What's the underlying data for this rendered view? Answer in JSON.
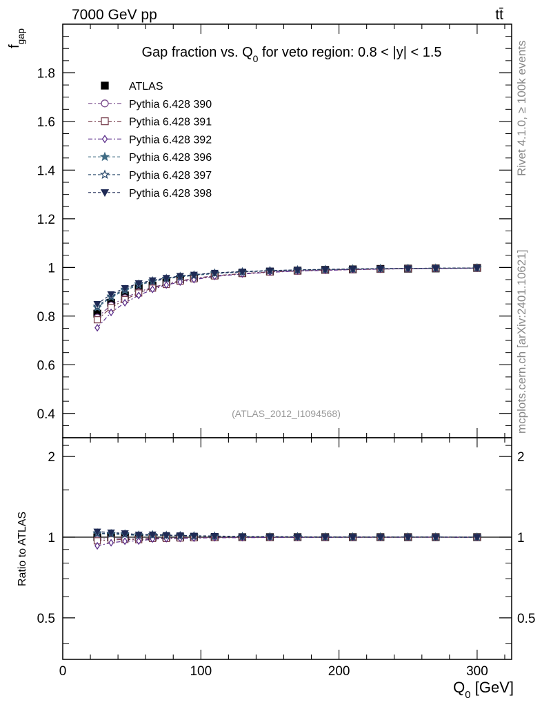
{
  "header": {
    "energy_label": "7000 GeV pp",
    "process_label": "tt̄",
    "side_rivet": "Rivet 4.1.0, ≥ 100k events",
    "side_mcplots": "mcplots.cern.ch [arXiv:2401.10621]",
    "analysis_id": "(ATLAS_2012_I1094568)"
  },
  "chart_data": [
    {
      "type": "scatter",
      "panel": "main",
      "title": "Gap fraction vs. Q0 for veto region: 0.8 < |y| < 1.5",
      "title_main": "Gap fraction vs. Q",
      "title_sub": "0",
      "title_rest": " for veto region: 0.8 < |y| < 1.5",
      "ylabel": "f",
      "ylabel_sub": "gap",
      "xlim": [
        0,
        325
      ],
      "ylim": [
        0.3,
        2.0
      ],
      "yticks": [
        0.4,
        0.6,
        0.8,
        1,
        1.2,
        1.4,
        1.6,
        1.8
      ],
      "ytick_labels": [
        "0.4",
        "0.6",
        "0.8",
        "1",
        "1.2",
        "1.4",
        "1.6",
        "1.8"
      ],
      "x": [
        25,
        35,
        45,
        55,
        65,
        75,
        85,
        95,
        110,
        130,
        150,
        170,
        190,
        210,
        230,
        250,
        270,
        300
      ],
      "series": [
        {
          "name": "ATLAS",
          "marker": "square-filled",
          "color": "#000000",
          "dash": "",
          "values": [
            0.81,
            0.855,
            0.885,
            0.915,
            0.925,
            0.94,
            0.95,
            0.958,
            0.968,
            0.977,
            0.983,
            0.987,
            0.99,
            0.992,
            0.994,
            0.995,
            0.996,
            0.998
          ]
        },
        {
          "name": "Pythia 6.428 390",
          "marker": "circle-open",
          "color": "#7a4a8c",
          "dash": "6,3,2,3",
          "values": [
            0.795,
            0.845,
            0.875,
            0.9,
            0.918,
            0.933,
            0.945,
            0.955,
            0.966,
            0.975,
            0.982,
            0.986,
            0.989,
            0.992,
            0.994,
            0.995,
            0.996,
            0.997
          ]
        },
        {
          "name": "Pythia 6.428 391",
          "marker": "square-open",
          "color": "#7a4250",
          "dash": "6,3,2,3",
          "values": [
            0.785,
            0.835,
            0.868,
            0.895,
            0.915,
            0.93,
            0.943,
            0.953,
            0.965,
            0.975,
            0.981,
            0.985,
            0.989,
            0.991,
            0.993,
            0.995,
            0.996,
            0.997
          ]
        },
        {
          "name": "Pythia 6.428 392",
          "marker": "diamond-open",
          "color": "#5b2d8a",
          "dash": "6,3,2,3",
          "values": [
            0.752,
            0.815,
            0.855,
            0.885,
            0.91,
            0.928,
            0.94,
            0.95,
            0.963,
            0.973,
            0.98,
            0.985,
            0.988,
            0.991,
            0.993,
            0.995,
            0.996,
            0.997
          ]
        },
        {
          "name": "Pythia 6.428 396",
          "marker": "star-filled",
          "color": "#3f6b84",
          "dash": "4,3",
          "values": [
            0.835,
            0.878,
            0.905,
            0.928,
            0.942,
            0.953,
            0.961,
            0.967,
            0.975,
            0.981,
            0.986,
            0.989,
            0.991,
            0.993,
            0.995,
            0.996,
            0.997,
            0.998
          ]
        },
        {
          "name": "Pythia 6.428 397",
          "marker": "star-open",
          "color": "#2a4a6c",
          "dash": "4,3",
          "values": [
            0.84,
            0.882,
            0.91,
            0.932,
            0.945,
            0.955,
            0.963,
            0.969,
            0.977,
            0.982,
            0.987,
            0.99,
            0.992,
            0.994,
            0.995,
            0.996,
            0.997,
            0.998
          ]
        },
        {
          "name": "Pythia 6.428 398",
          "marker": "triangle-down-filled",
          "color": "#1f2a55",
          "dash": "4,3",
          "values": [
            0.85,
            0.89,
            0.915,
            0.935,
            0.947,
            0.957,
            0.965,
            0.97,
            0.978,
            0.983,
            0.987,
            0.99,
            0.992,
            0.994,
            0.995,
            0.996,
            0.997,
            0.998
          ]
        }
      ],
      "legend_position": "top-left"
    },
    {
      "type": "scatter",
      "panel": "ratio",
      "xlabel": "Q",
      "xlabel_sub": "0",
      "xlabel_rest": " [GeV]",
      "ylabel": "Ratio to ATLAS",
      "xlim": [
        0,
        325
      ],
      "ylim": [
        0.35,
        2.35
      ],
      "scale": "log",
      "xticks": [
        0,
        100,
        200,
        300
      ],
      "xtick_labels": [
        "0",
        "100",
        "200",
        "300"
      ],
      "yticks": [
        0.5,
        1,
        2
      ],
      "ytick_labels": [
        "0.5",
        "1",
        "2"
      ],
      "reference_line": 1
    }
  ]
}
